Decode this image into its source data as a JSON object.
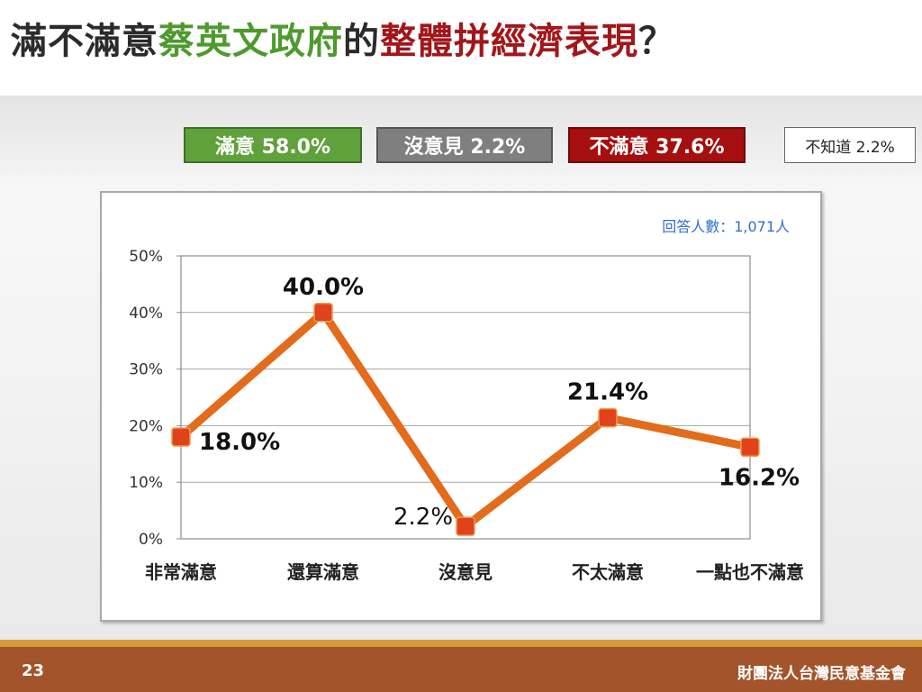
{
  "title": {
    "part1": "滿不滿意",
    "part2": "蔡英文政府",
    "part3": "的",
    "part4": "整體拼經濟表現",
    "part5": "？"
  },
  "summary": {
    "satisfied": "滿意 58.0%",
    "no_opinion": "沒意見 2.2%",
    "dissatisfied": "不滿意 37.6%",
    "dont_know": "不知道 2.2%"
  },
  "respondents": "回答人數：1,071人",
  "footer": {
    "page_number": "23",
    "organization": "財團法人台灣民意基金會"
  },
  "colors": {
    "line": "#e26b1c",
    "marker": "#e0421c",
    "satisfied": "#5fa13a",
    "no_opinion": "#7f7f7f",
    "dissatisfied": "#a50f0f",
    "respondents_text": "#2f6fd0"
  },
  "chart_data": {
    "type": "line",
    "categories": [
      "非常滿意",
      "還算滿意",
      "沒意見",
      "不太滿意",
      "一點也不滿意"
    ],
    "values": [
      18.0,
      40.0,
      2.2,
      21.4,
      16.2
    ],
    "value_labels": [
      "18.0%",
      "40.0%",
      "2.2%",
      "21.4%",
      "16.2%"
    ],
    "yticks": [
      "0%",
      "10%",
      "20%",
      "30%",
      "40%",
      "50%"
    ],
    "ylim": [
      0,
      50
    ],
    "grid": true,
    "legend": "none"
  }
}
